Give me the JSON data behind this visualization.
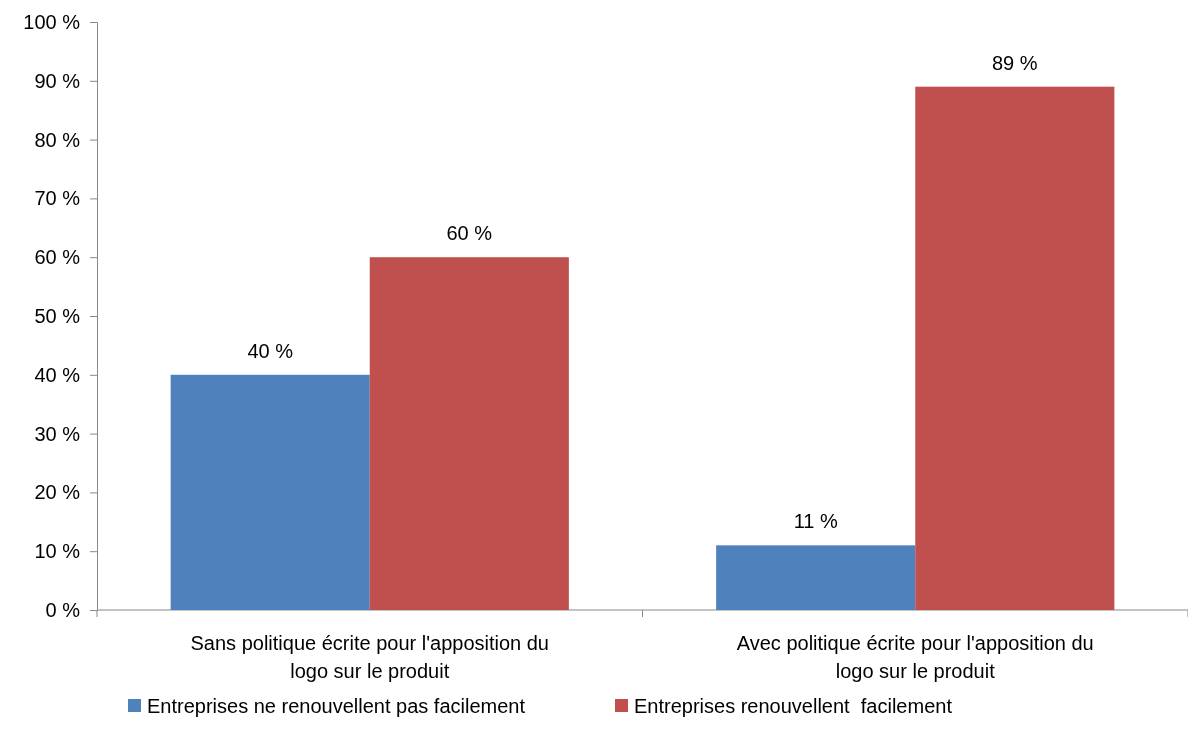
{
  "chart_data": {
    "type": "bar",
    "categories": [
      "Sans politique écrite pour l'apposition du logo sur le produit",
      "Avec politique écrite pour l'apposition du logo sur le produit"
    ],
    "series": [
      {
        "name": "Entreprises ne renouvellent pas facilement",
        "color": "#4f81bd",
        "values": [
          40,
          11
        ],
        "value_labels": [
          "40 %",
          "11 %"
        ]
      },
      {
        "name": "Entreprises renouvellent  facilement",
        "color": "#c0504d",
        "values": [
          60,
          89
        ],
        "value_labels": [
          "60 %",
          "89 %"
        ]
      }
    ],
    "ylim": [
      0,
      100
    ],
    "yticks": [
      {
        "value": 0,
        "label": "0 %"
      },
      {
        "value": 10,
        "label": "10 %"
      },
      {
        "value": 20,
        "label": "20 %"
      },
      {
        "value": 30,
        "label": "30 %"
      },
      {
        "value": 40,
        "label": "40 %"
      },
      {
        "value": 50,
        "label": "50 %"
      },
      {
        "value": 60,
        "label": "60 %"
      },
      {
        "value": 70,
        "label": "70 %"
      },
      {
        "value": 80,
        "label": "80 %"
      },
      {
        "value": 90,
        "label": "90 %"
      },
      {
        "value": 100,
        "label": "100 %"
      }
    ],
    "grid": false,
    "legend": "bottom"
  }
}
